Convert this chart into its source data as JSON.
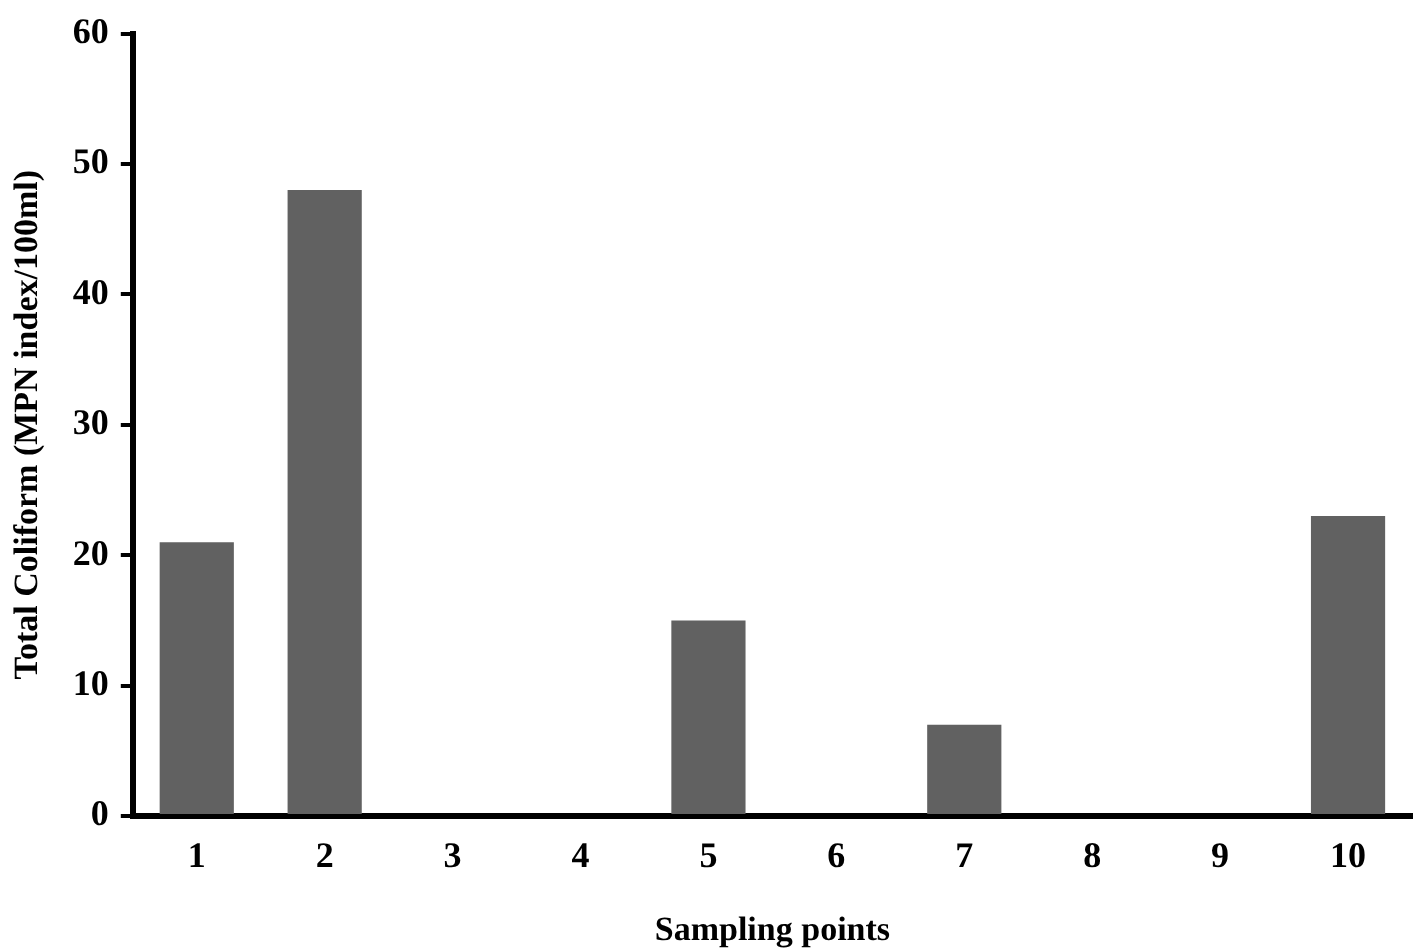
{
  "chart_data": {
    "type": "bar",
    "xlabel": "Sampling points",
    "ylabel": "Total Coliform (MPN index/100ml)",
    "categories": [
      "1",
      "2",
      "3",
      "4",
      "5",
      "6",
      "7",
      "8",
      "9",
      "10"
    ],
    "values": [
      21,
      48,
      0,
      0,
      15,
      0,
      7,
      0,
      0,
      23
    ],
    "color": "#616161",
    "ylim": [
      0,
      60
    ],
    "yticks": [
      0,
      10,
      20,
      30,
      40,
      50,
      60
    ],
    "grid": false,
    "legend": false
  }
}
